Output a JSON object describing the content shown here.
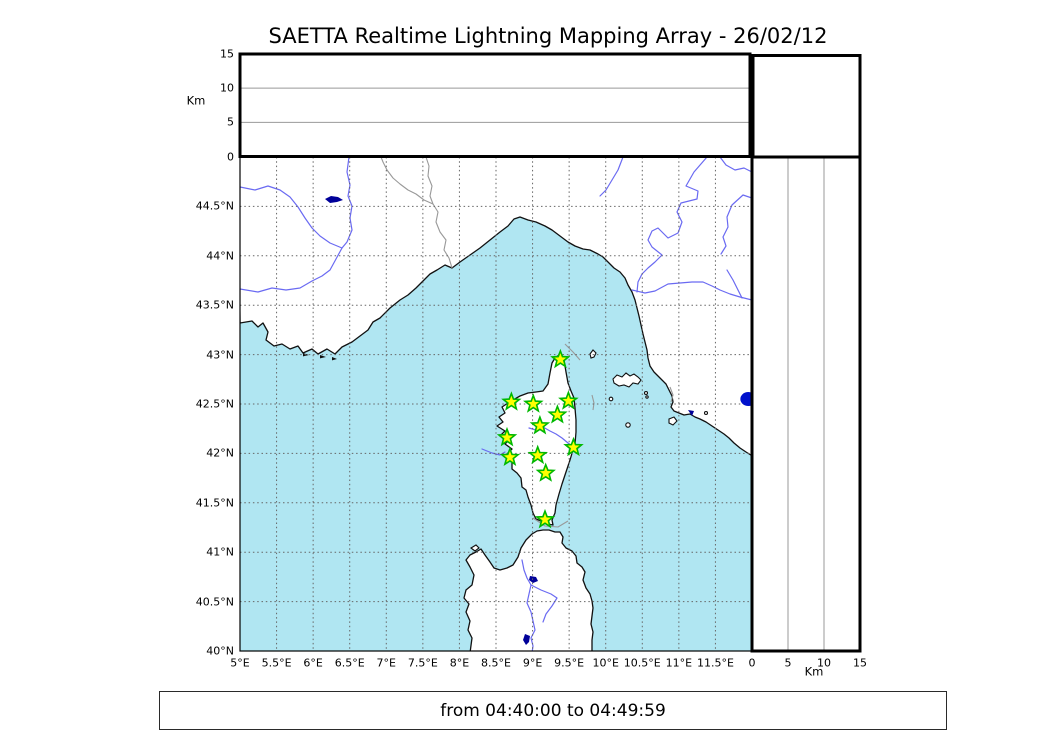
{
  "title": "SAETTA Realtime Lightning Mapping Array - 26/02/12",
  "time_range": "from 04:40:00 to 04:49:59",
  "colors": {
    "sea": "#b0e6f2",
    "land": "#ffffff",
    "coastline": "#111111",
    "river": "#6a6af2",
    "lake": "#000099",
    "grid": "#666666",
    "panel_grid": "#999999",
    "station_fill": "#ffff00",
    "station_stroke": "#00b800",
    "event_marker": "#0011cc",
    "country_border": "#999999"
  },
  "map_axes": {
    "lon_min": 5,
    "lon_max": 12,
    "lat_min": 40,
    "lat_max": 45,
    "lon_ticks": [
      {
        "v": 5,
        "label": "5°E"
      },
      {
        "v": 5.5,
        "label": "5.5°E"
      },
      {
        "v": 6,
        "label": "6°E"
      },
      {
        "v": 6.5,
        "label": "6.5°E"
      },
      {
        "v": 7,
        "label": "7°E"
      },
      {
        "v": 7.5,
        "label": "7.5°E"
      },
      {
        "v": 8,
        "label": "8°E"
      },
      {
        "v": 8.5,
        "label": "8.5°E"
      },
      {
        "v": 9,
        "label": "9°E"
      },
      {
        "v": 9.5,
        "label": "9.5°E"
      },
      {
        "v": 10,
        "label": "10°E"
      },
      {
        "v": 10.5,
        "label": "10.5°E"
      },
      {
        "v": 11,
        "label": "11°E"
      },
      {
        "v": 11.5,
        "label": "11.5°E"
      }
    ],
    "lat_ticks": [
      {
        "v": 40,
        "label": "40°N"
      },
      {
        "v": 40.5,
        "label": "40.5°N"
      },
      {
        "v": 41,
        "label": "41°N"
      },
      {
        "v": 41.5,
        "label": "41.5°N"
      },
      {
        "v": 42,
        "label": "42°N"
      },
      {
        "v": 42.5,
        "label": "42.5°N"
      },
      {
        "v": 43,
        "label": "43°N"
      },
      {
        "v": 43.5,
        "label": "43.5°N"
      },
      {
        "v": 44,
        "label": "44°N"
      },
      {
        "v": 44.5,
        "label": "44.5°N"
      }
    ]
  },
  "altitude_axes": {
    "label": "Km",
    "min": 0,
    "max": 15,
    "ticks": [
      {
        "v": 0,
        "label": "0"
      },
      {
        "v": 5,
        "label": "5"
      },
      {
        "v": 10,
        "label": "10"
      },
      {
        "v": 15,
        "label": "15"
      }
    ],
    "gridlines": [
      5,
      10
    ]
  },
  "stations": [
    {
      "lon": 9.38,
      "lat": 42.95
    },
    {
      "lon": 8.71,
      "lat": 42.52
    },
    {
      "lon": 9.01,
      "lat": 42.5
    },
    {
      "lon": 9.49,
      "lat": 42.53
    },
    {
      "lon": 9.34,
      "lat": 42.39
    },
    {
      "lon": 9.1,
      "lat": 42.28
    },
    {
      "lon": 8.65,
      "lat": 42.16
    },
    {
      "lon": 9.56,
      "lat": 42.06
    },
    {
      "lon": 8.69,
      "lat": 41.96
    },
    {
      "lon": 9.07,
      "lat": 41.98
    },
    {
      "lon": 9.18,
      "lat": 41.8
    },
    {
      "lon": 9.17,
      "lat": 41.33
    }
  ],
  "event_marker": {
    "lon": 11.95,
    "lat": 42.55
  }
}
